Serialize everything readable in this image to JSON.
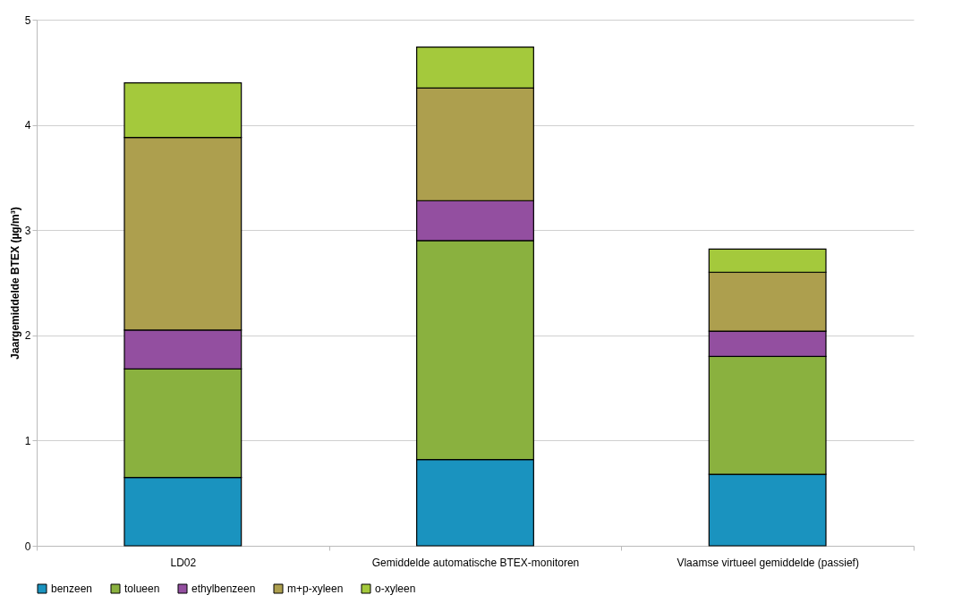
{
  "chart_data": {
    "type": "bar",
    "stacked": true,
    "ylabel": "Jaargemiddelde BTEX (µg/m³)",
    "categories": [
      "LD02",
      "Gemiddelde automatische BTEX-monitoren",
      "Vlaamse virtueel gemiddelde (passief)"
    ],
    "series": [
      {
        "name": "benzeen",
        "color": "#1a93bf",
        "values": [
          0.65,
          0.82,
          0.68
        ]
      },
      {
        "name": "tolueen",
        "color": "#8ab13f",
        "values": [
          1.03,
          2.08,
          1.12
        ]
      },
      {
        "name": "ethylbenzeen",
        "color": "#934fa0",
        "values": [
          0.37,
          0.38,
          0.24
        ]
      },
      {
        "name": "m+p-xyleen",
        "color": "#ad9f4e",
        "values": [
          1.83,
          1.07,
          0.56
        ]
      },
      {
        "name": "o-xyleen",
        "color": "#a4c93c",
        "values": [
          0.52,
          0.39,
          0.22
        ]
      }
    ],
    "ylim": [
      0,
      5
    ],
    "yticks": [
      0,
      1,
      2,
      3,
      4,
      5
    ],
    "grid": "y",
    "legend": "bottom"
  }
}
